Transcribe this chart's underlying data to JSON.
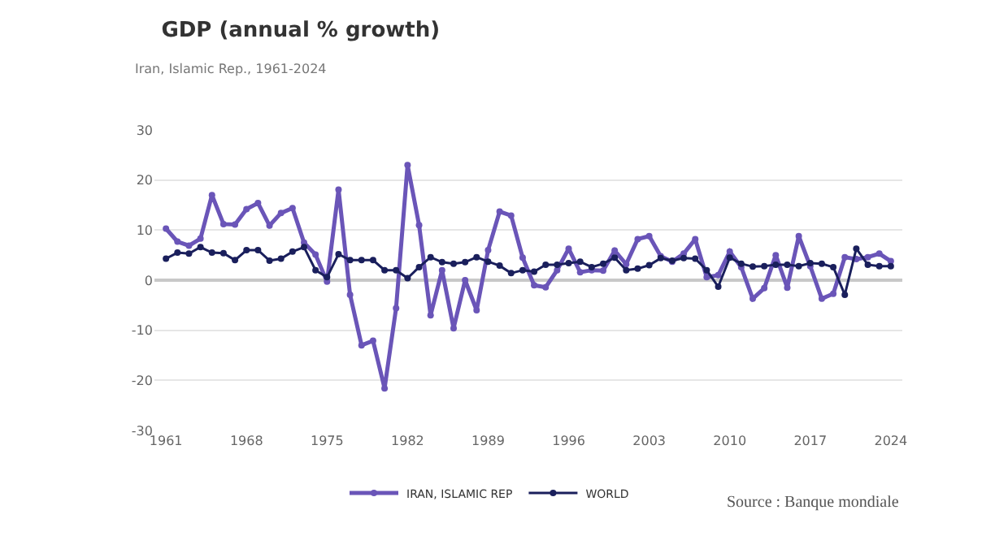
{
  "chart_data": {
    "type": "line",
    "title": "GDP (annual % growth)",
    "subtitle": "Iran, Islamic Rep., 1961-2024",
    "x": [
      1961,
      1962,
      1963,
      1964,
      1965,
      1966,
      1967,
      1968,
      1969,
      1970,
      1971,
      1972,
      1973,
      1974,
      1975,
      1976,
      1977,
      1978,
      1979,
      1980,
      1981,
      1982,
      1983,
      1984,
      1985,
      1986,
      1987,
      1988,
      1989,
      1990,
      1991,
      1992,
      1993,
      1994,
      1995,
      1996,
      1997,
      1998,
      1999,
      2000,
      2001,
      2002,
      2003,
      2004,
      2005,
      2006,
      2007,
      2008,
      2009,
      2010,
      2011,
      2012,
      2013,
      2014,
      2015,
      2016,
      2017,
      2018,
      2019,
      2020,
      2021,
      2022,
      2023,
      2024
    ],
    "series": [
      {
        "name": "IRAN, ISLAMIC REP",
        "color": "#6a55b8",
        "values": [
          10.3,
          7.7,
          6.9,
          8.3,
          17.0,
          11.2,
          11.1,
          14.2,
          15.4,
          10.9,
          13.4,
          14.4,
          7.5,
          5.1,
          -0.3,
          18.1,
          -2.9,
          -13.0,
          -12.1,
          -21.6,
          -5.6,
          23.0,
          11.0,
          -7.0,
          2.0,
          -9.6,
          0.0,
          -6.0,
          6.0,
          13.7,
          12.9,
          4.5,
          -1.0,
          -1.4,
          2.0,
          6.3,
          1.6,
          2.0,
          1.9,
          5.9,
          3.2,
          8.2,
          8.8,
          4.8,
          3.7,
          5.3,
          8.2,
          0.6,
          1.0,
          5.7,
          2.6,
          -3.7,
          -1.6,
          5.0,
          -1.5,
          8.8,
          2.8,
          -3.7,
          -2.7,
          4.6,
          4.2,
          4.6,
          5.3,
          3.8
        ]
      },
      {
        "name": "WORLD",
        "color": "#1a1f5c",
        "values": [
          4.3,
          5.5,
          5.3,
          6.6,
          5.5,
          5.4,
          4.0,
          6.0,
          6.0,
          3.9,
          4.3,
          5.7,
          6.6,
          2.0,
          0.6,
          5.2,
          4.0,
          4.0,
          4.0,
          2.0,
          2.0,
          0.4,
          2.6,
          4.6,
          3.6,
          3.3,
          3.6,
          4.6,
          3.7,
          2.9,
          1.4,
          2.0,
          1.7,
          3.1,
          3.1,
          3.4,
          3.7,
          2.6,
          3.3,
          4.5,
          2.0,
          2.3,
          3.0,
          4.4,
          3.9,
          4.4,
          4.3,
          2.0,
          -1.3,
          4.5,
          3.3,
          2.7,
          2.8,
          3.1,
          3.1,
          2.8,
          3.4,
          3.3,
          2.6,
          -2.9,
          6.3,
          3.1,
          2.8,
          2.8
        ]
      }
    ],
    "xlim": [
      1960,
      2025
    ],
    "xticks": [
      1961,
      1968,
      1975,
      1982,
      1989,
      1996,
      2003,
      2010,
      2017,
      2024
    ],
    "ylim": [
      -30,
      30
    ],
    "yticks": [
      -30,
      -20,
      -10,
      0,
      10,
      20,
      30
    ],
    "grid": "y",
    "legend": "bottom",
    "marker": "circle",
    "line_style": "solid",
    "annotations": [
      "Source : Banque mondiale"
    ]
  }
}
